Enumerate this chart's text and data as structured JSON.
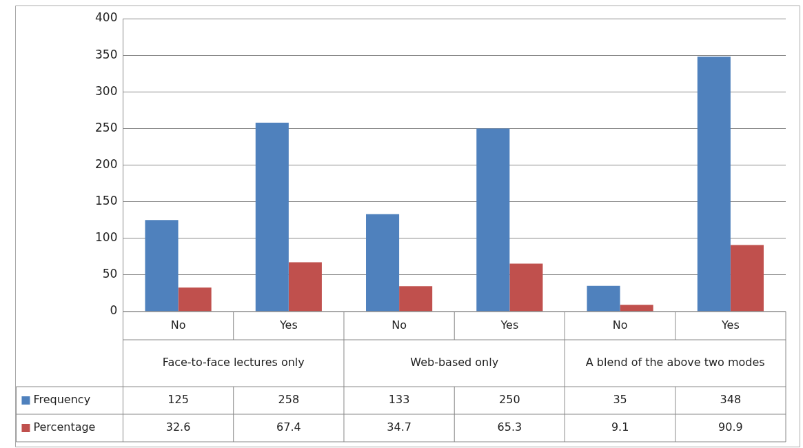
{
  "chart_data": {
    "type": "bar",
    "categories": [
      "No",
      "Yes",
      "No",
      "Yes",
      "No",
      "Yes"
    ],
    "series": [
      {
        "name": "Frequency",
        "color": "#4f81bd",
        "values": [
          125,
          258,
          133,
          250,
          35,
          348
        ]
      },
      {
        "name": "Percentage",
        "color": "#c0504d",
        "values": [
          32.6,
          67.4,
          34.7,
          65.3,
          9.1,
          90.9
        ]
      }
    ],
    "ylim": [
      0,
      400
    ],
    "yticks": [
      0,
      50,
      100,
      150,
      200,
      250,
      300,
      350,
      400
    ],
    "grid": "y",
    "legend": "bottom left",
    "data_labels": true,
    "annotations": [
      "Face-to-face lectures only",
      "Web-based only",
      "A blend of the above two modes"
    ]
  }
}
